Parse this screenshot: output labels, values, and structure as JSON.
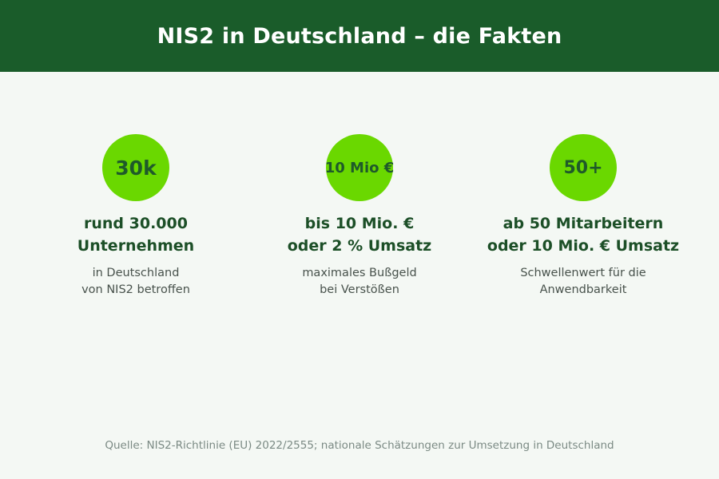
{
  "header": {
    "title": "NIS2 in Deutschland – die Fakten",
    "background": "#1a5c2a"
  },
  "accent": "#6ad800",
  "facts": [
    {
      "badge": "30k",
      "title": "rund 30.000\nUnternehmen",
      "subtitle": "in Deutschland\nvon NIS2 betroffen"
    },
    {
      "badge": "10 Mio €",
      "title": "bis 10 Mio. €\noder 2 % Umsatz",
      "subtitle": "maximales Bußgeld\nbei Verstößen"
    },
    {
      "badge": "50+",
      "title": "ab 50 Mitarbeitern\noder 10 Mio. € Umsatz",
      "subtitle": "Schwellenwert für die\nAnwendbarkeit"
    }
  ],
  "footer": {
    "source": "Quelle: NIS2-Richtlinie (EU) 2022/2555; nationale Schätzungen zur Umsetzung in Deutschland"
  }
}
